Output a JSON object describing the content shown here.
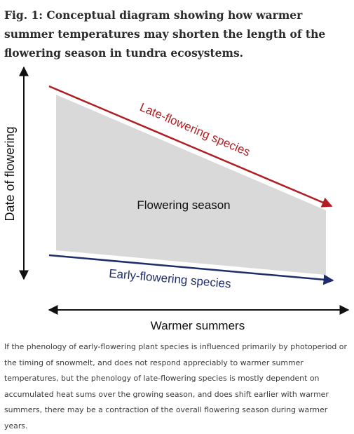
{
  "figure": {
    "title": "Fig. 1: Conceptual diagram showing how warmer summer temperatures may shorten the length of the flowering season in tundra ecosystems.",
    "caption": "If the phenology of early-flowering plant species is influenced primarily by photoperiod or the timing of snowmelt, and does not respond appreciably to warmer summer temperatures, but the phenology of late-flowering species is mostly dependent on accumulated heat sums over the growing season, and does shift earlier with warmer summers, there may be a contraction of the overall flowering season during warmer years."
  },
  "diagram": {
    "y_axis_label": "Date of flowering",
    "x_axis_label": "Warmer summers",
    "region_label": "Flowering season",
    "late_line_label": "Late-flowering species",
    "early_line_label": "Early-flowering species"
  },
  "colors": {
    "late_line": "#b01e23",
    "early_line": "#1f2d6b",
    "region_fill": "#d9d9d9",
    "axis": "#111111"
  }
}
